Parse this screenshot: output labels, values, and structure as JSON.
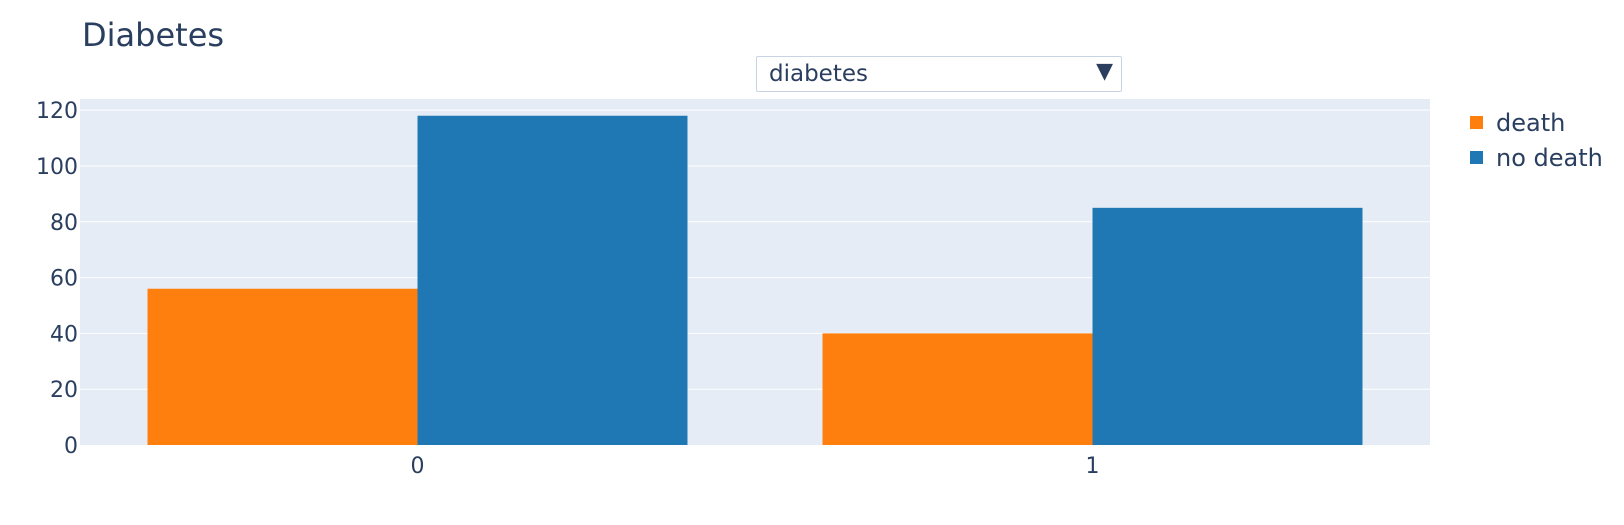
{
  "title": "Diabetes",
  "dropdown": {
    "selected": "diabetes",
    "arrow_icon": "triangle-down-icon"
  },
  "colors": {
    "plot_bg": "#e5ecf6",
    "grid": "#ffffff",
    "death": "#ff7f0e",
    "no_death": "#1f77b4"
  },
  "chart_data": {
    "type": "bar",
    "categories": [
      "0",
      "1"
    ],
    "series": [
      {
        "name": "death",
        "values": [
          56,
          40
        ],
        "color": "#ff7f0e"
      },
      {
        "name": "no death",
        "values": [
          118,
          85
        ],
        "color": "#1f77b4"
      }
    ],
    "yticks": [
      0,
      20,
      40,
      60,
      80,
      100,
      120
    ],
    "ylim": [
      0,
      124
    ],
    "title": "Diabetes",
    "xlabel": "",
    "ylabel": "",
    "grid": true,
    "legend_position": "top-right"
  }
}
